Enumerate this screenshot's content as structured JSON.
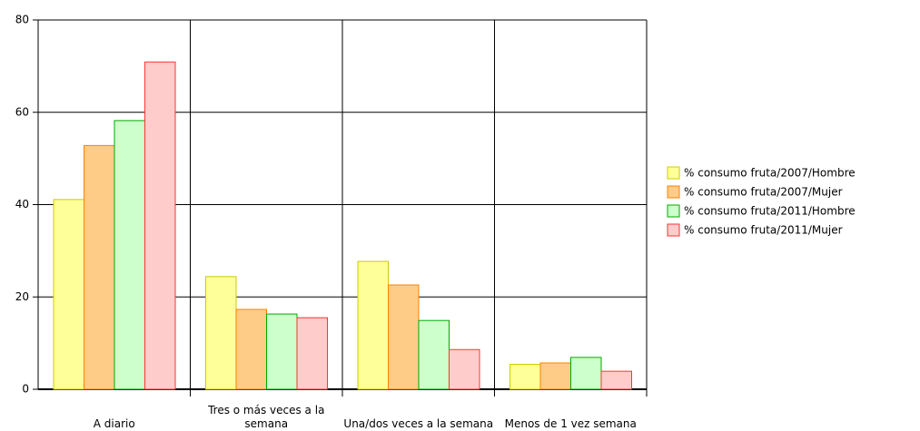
{
  "chart_data": {
    "type": "bar",
    "categories": [
      "A diario",
      "Tres o más veces a la semana",
      "Una/dos veces a la semana",
      "Menos de 1 vez semana"
    ],
    "series": [
      {
        "name": "% consumo fruta/2007/Hombre",
        "color": "#ffff99",
        "edgecolor": "#cccc00",
        "values": [
          41.1,
          24.4,
          27.7,
          5.4
        ]
      },
      {
        "name": "% consumo fruta/2007/Mujer",
        "color": "#ffcc88",
        "edgecolor": "#ff8000",
        "values": [
          52.8,
          17.3,
          22.6,
          5.7
        ]
      },
      {
        "name": "% consumo fruta/2011/Hombre",
        "color": "#ccffcc",
        "edgecolor": "#00aa00",
        "values": [
          58.2,
          16.3,
          14.9,
          6.9
        ]
      },
      {
        "name": "% consumo fruta/2011/Mujer",
        "color": "#ffcccc",
        "edgecolor": "#ff3333",
        "values": [
          70.9,
          15.5,
          8.6,
          3.9
        ]
      }
    ],
    "ylim": [
      0,
      80
    ],
    "yticks": [
      0,
      20,
      40,
      60,
      80
    ],
    "grid": true,
    "legend": "right"
  }
}
